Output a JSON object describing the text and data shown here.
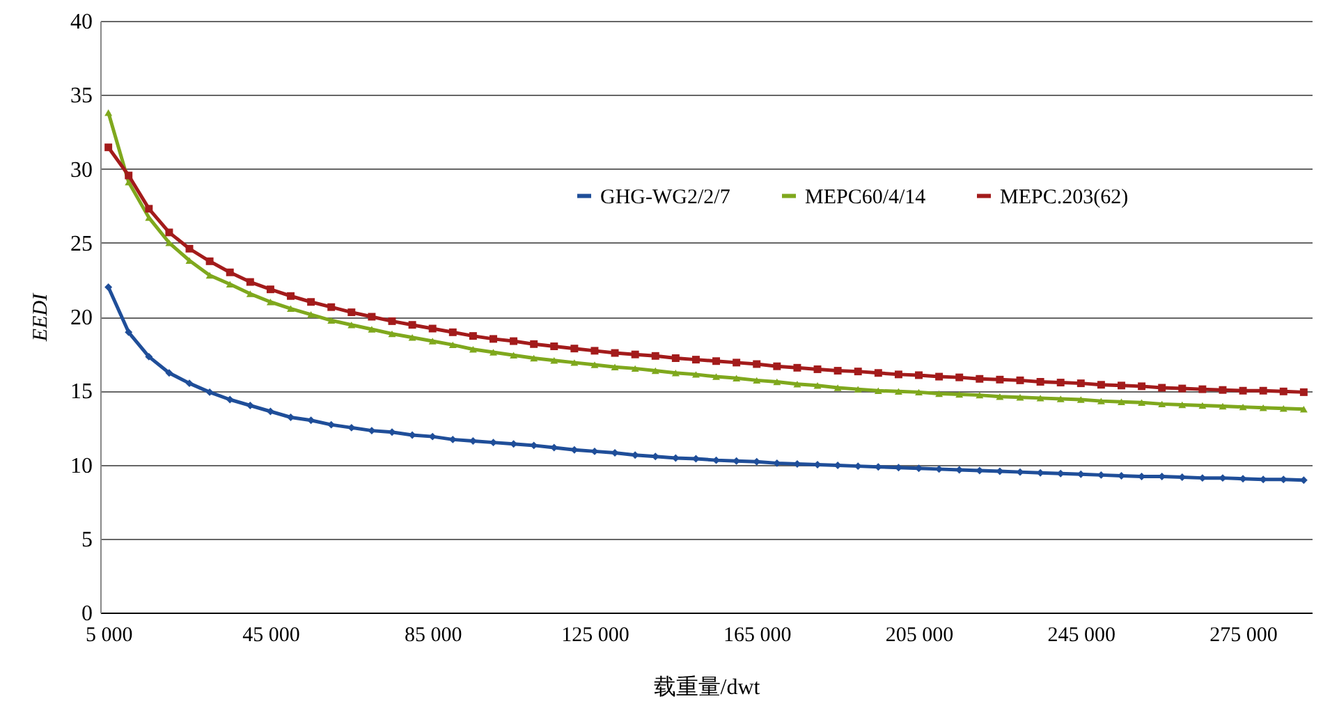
{
  "chart_data": {
    "type": "line",
    "xlabel": "载重量/dwt",
    "ylabel": "EEDI",
    "categories": [
      "5 000",
      null,
      null,
      null,
      null,
      null,
      null,
      null,
      "45 000",
      null,
      null,
      null,
      null,
      null,
      null,
      null,
      "85 000",
      null,
      null,
      null,
      null,
      null,
      null,
      null,
      "125 000",
      null,
      null,
      null,
      null,
      null,
      null,
      null,
      "165 000",
      null,
      null,
      null,
      null,
      null,
      null,
      null,
      "205 000",
      null,
      null,
      null,
      null,
      null,
      null,
      null,
      "245 000",
      null,
      null,
      null,
      null,
      null,
      null,
      null,
      "275 000",
      null,
      null,
      null
    ],
    "series": [
      {
        "name": "GHG-WG2/2/7",
        "color": "#1f4e99",
        "marker": "diamond",
        "values": [
          22.0,
          18.95,
          17.3,
          16.2,
          15.5,
          14.9,
          14.4,
          14.0,
          13.6,
          13.2,
          13.0,
          12.7,
          12.5,
          12.3,
          12.2,
          12.0,
          11.9,
          11.7,
          11.6,
          11.5,
          11.4,
          11.3,
          11.15,
          11.0,
          10.9,
          10.8,
          10.65,
          10.55,
          10.45,
          10.4,
          10.3,
          10.25,
          10.2,
          10.1,
          10.05,
          10.0,
          9.95,
          9.9,
          9.85,
          9.8,
          9.75,
          9.7,
          9.65,
          9.6,
          9.55,
          9.5,
          9.45,
          9.4,
          9.35,
          9.3,
          9.25,
          9.2,
          9.2,
          9.15,
          9.1,
          9.1,
          9.05,
          9.0,
          9.0,
          8.95
        ]
      },
      {
        "name": "MEPC60/4/14",
        "color": "#7fa81d",
        "marker": "triangle",
        "values": [
          33.8,
          29.1,
          26.7,
          25.0,
          23.8,
          22.8,
          22.2,
          21.55,
          21.0,
          20.55,
          20.15,
          19.75,
          19.45,
          19.15,
          18.85,
          18.6,
          18.35,
          18.1,
          17.8,
          17.6,
          17.4,
          17.2,
          17.05,
          16.9,
          16.75,
          16.6,
          16.5,
          16.35,
          16.2,
          16.1,
          15.95,
          15.85,
          15.7,
          15.6,
          15.45,
          15.35,
          15.2,
          15.1,
          15.0,
          14.95,
          14.9,
          14.8,
          14.75,
          14.7,
          14.6,
          14.55,
          14.5,
          14.45,
          14.4,
          14.3,
          14.25,
          14.2,
          14.1,
          14.05,
          14.0,
          13.95,
          13.9,
          13.85,
          13.8,
          13.75
        ]
      },
      {
        "name": "MEPC.203(62)",
        "color": "#a31b1b",
        "marker": "square",
        "values": [
          31.45,
          29.55,
          27.3,
          25.7,
          24.6,
          23.75,
          23.0,
          22.35,
          21.85,
          21.4,
          21.0,
          20.65,
          20.3,
          20.0,
          19.7,
          19.45,
          19.2,
          18.95,
          18.7,
          18.5,
          18.35,
          18.15,
          18.0,
          17.85,
          17.7,
          17.55,
          17.45,
          17.35,
          17.2,
          17.1,
          17.0,
          16.9,
          16.8,
          16.65,
          16.55,
          16.45,
          16.35,
          16.3,
          16.2,
          16.1,
          16.05,
          15.95,
          15.9,
          15.8,
          15.75,
          15.7,
          15.6,
          15.55,
          15.5,
          15.4,
          15.35,
          15.3,
          15.2,
          15.15,
          15.1,
          15.05,
          15.0,
          15.0,
          14.95,
          14.9
        ]
      }
    ],
    "ylim": [
      0,
      40
    ],
    "yticks": [
      0,
      5,
      10,
      15,
      20,
      25,
      30,
      35,
      40
    ],
    "grid": "y",
    "legend": "right",
    "line_style": "solid"
  }
}
